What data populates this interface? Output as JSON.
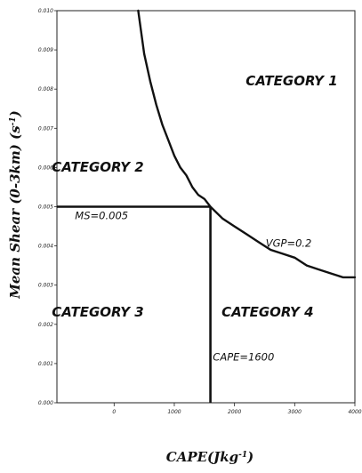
{
  "chart_data": {
    "type": "line",
    "title": "",
    "xlabel": "CAPE(Jkg",
    "xlabel_sup": "-1",
    "xlabel_tail": ")",
    "ylabel": "Mean Shear (0-3km) (s",
    "ylabel_sup": "-1",
    "ylabel_tail": ")",
    "xlim": [
      -950,
      4000
    ],
    "ylim": [
      0.0,
      0.01
    ],
    "x_ticks": [
      0,
      1000,
      2000,
      3000,
      4000
    ],
    "x_tick_labels": [
      "0",
      "1000",
      "2000",
      "3000",
      "4000"
    ],
    "y_ticks": [
      0.0,
      0.001,
      0.002,
      0.003,
      0.004,
      0.005,
      0.006,
      0.007,
      0.008,
      0.009,
      0.01
    ],
    "y_tick_labels": [
      "0.000",
      "0.001",
      "0.002",
      "0.003",
      "0.004",
      "0.005",
      "0.006",
      "0.007",
      "0.008",
      "0.009",
      "0.010"
    ],
    "grid": false,
    "series": [
      {
        "name": "VGP=0.2",
        "x": [
          400,
          500,
          600,
          700,
          800,
          900,
          1000,
          1100,
          1200,
          1300,
          1400,
          1500,
          1600,
          1800,
          2000,
          2200,
          2400,
          2600,
          2800,
          3000,
          3200,
          3400,
          3600,
          3800,
          4000
        ],
        "y": [
          0.01,
          0.0089,
          0.0082,
          0.0076,
          0.0071,
          0.0067,
          0.0063,
          0.006,
          0.0058,
          0.0055,
          0.0053,
          0.0052,
          0.005,
          0.0047,
          0.0045,
          0.0043,
          0.0041,
          0.0039,
          0.0038,
          0.0037,
          0.0035,
          0.0034,
          0.0033,
          0.0032,
          0.0032
        ]
      }
    ],
    "thresholds": {
      "ms_value": 0.005,
      "ms_label": "MS=0.005",
      "cape_value": 1600,
      "cape_label": "CAPE=1600"
    },
    "regions": [
      {
        "label": "CATEGORY 1",
        "x": 2950,
        "y": 0.0081
      },
      {
        "label": "CATEGORY 2",
        "x": -270,
        "y": 0.0059
      },
      {
        "label": "CATEGORY 3",
        "x": -270,
        "y": 0.0022
      },
      {
        "label": "CATEGORY 4",
        "x": 2550,
        "y": 0.0022
      }
    ],
    "annotations": [
      {
        "key": "ms",
        "x": -650,
        "y": 0.00468
      },
      {
        "key": "cape",
        "x": 2150,
        "y": 0.00108
      },
      {
        "key": "vgp",
        "x": 2900,
        "y": 0.00398
      }
    ]
  }
}
